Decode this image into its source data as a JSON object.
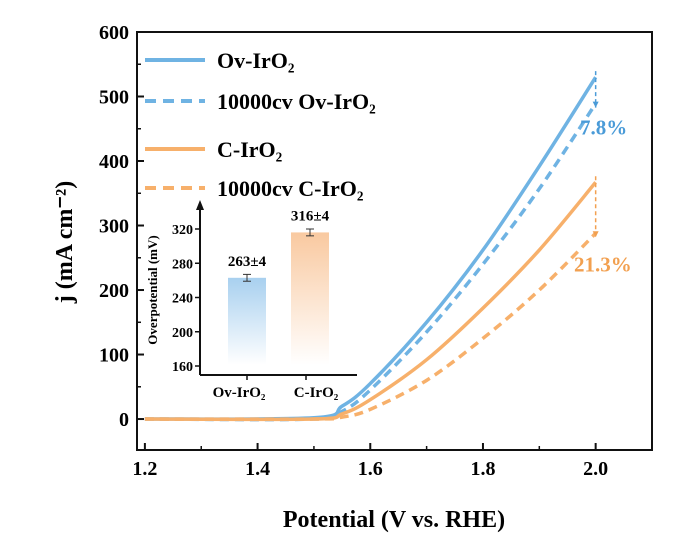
{
  "chart_data": [
    {
      "type": "line",
      "title": "",
      "xlabel": "Potential (V vs. RHE)",
      "ylabel": "j (mA cm⁻²)",
      "xlim": [
        1.186,
        2.1
      ],
      "ylim": [
        -48,
        600
      ],
      "xticks": [
        1.2,
        1.4,
        1.6,
        1.8,
        2.0
      ],
      "xtick_labels": [
        "1.2",
        "1.4",
        "1.6",
        "1.8",
        "2.0"
      ],
      "yticks": [
        0,
        100,
        200,
        300,
        400,
        500,
        600
      ],
      "ytick_labels": [
        "0",
        "100",
        "200",
        "300",
        "400",
        "500",
        "600"
      ],
      "grid": false,
      "legend_position": "top-left",
      "series": [
        {
          "name": "Ov-IrO₂",
          "color": "#6fb3e3",
          "dash": false,
          "x": [
            1.2,
            1.5,
            1.55,
            1.6,
            1.7,
            1.8,
            1.9,
            2.0
          ],
          "y": [
            0,
            2,
            20,
            55,
            150,
            262,
            392,
            530
          ]
        },
        {
          "name": "10000cv Ov-IrO₂",
          "color": "#6fb3e3",
          "dash": true,
          "x": [
            1.2,
            1.5,
            1.55,
            1.6,
            1.7,
            1.8,
            1.9,
            2.0
          ],
          "y": [
            0,
            0,
            12,
            45,
            135,
            240,
            357,
            489
          ]
        },
        {
          "name": "C-IrO₂",
          "color": "#f7b06b",
          "dash": false,
          "x": [
            1.2,
            1.5,
            1.55,
            1.6,
            1.7,
            1.8,
            1.9,
            2.0
          ],
          "y": [
            0,
            0,
            8,
            30,
            92,
            172,
            262,
            367
          ]
        },
        {
          "name": "10000cv C-IrO₂",
          "color": "#f7b06b",
          "dash": true,
          "x": [
            1.2,
            1.5,
            1.55,
            1.6,
            1.7,
            1.8,
            1.9,
            2.0
          ],
          "y": [
            0,
            0,
            3,
            15,
            60,
            125,
            200,
            288
          ]
        }
      ],
      "annotations": [
        {
          "text": "7.8%",
          "color": "#4a9bd8",
          "x": 2.0,
          "from": 530,
          "to": 489
        },
        {
          "text": "21.3%",
          "color": "#f2a050",
          "x": 2.0,
          "from": 367,
          "to": 288
        }
      ]
    },
    {
      "type": "bar",
      "title": "",
      "xlabel": "",
      "ylabel": "Overpotential (mV)",
      "categories": [
        "Ov-IrO₂",
        "C-IrO₂"
      ],
      "values": [
        263,
        316
      ],
      "errors": [
        4,
        4
      ],
      "data_labels": [
        "263±4",
        "316±4"
      ],
      "colors": [
        "#a8d0ef",
        "#f9c9a0"
      ],
      "ylim": [
        155,
        350
      ],
      "yticks": [
        160,
        200,
        240,
        280,
        320
      ],
      "ytick_labels": [
        "160",
        "200",
        "240",
        "280",
        "320"
      ],
      "position": "inset"
    }
  ]
}
